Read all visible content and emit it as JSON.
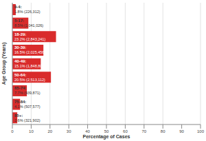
{
  "chart_data": {
    "type": "bar",
    "orientation": "horizontal",
    "x_label": "Percentage of Cases",
    "y_label": "Age Group (Years)",
    "categories": [
      "0-4:",
      "5-17:",
      "18-29:",
      "30-39:",
      "40-49:",
      "50-64:",
      "65-74:",
      "75-84:",
      "85+:"
    ],
    "values": [
      1.8,
      8.5,
      23.2,
      16.5,
      15.1,
      20.5,
      7.7,
      4.1,
      2.6
    ],
    "value_labels": [
      "1.8% (226,312)",
      "8.5% (1,041,026)",
      "23.2% (2,843,241)",
      "16.5% (2,025,456)",
      "15.1% (1,848,803)",
      "20.5% (2,513,112)",
      "7.7% (939,871)",
      "4.1% (507,577)",
      "2.6% (321,902)"
    ],
    "color": "#d92b2b",
    "xlim": [
      0,
      100
    ],
    "xticks": [
      0,
      10,
      20,
      30,
      40,
      50,
      60,
      70,
      80,
      90,
      100
    ],
    "grid": true,
    "data_labels": true,
    "tick_labels": "x"
  }
}
